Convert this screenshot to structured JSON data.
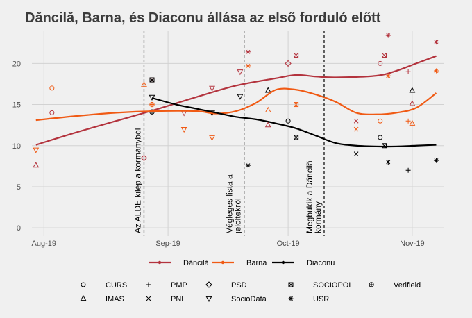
{
  "chart_data": {
    "type": "scatter",
    "title": "Dăncilă, Barna, és Diaconu állása az első forduló előtt",
    "xlabel": "",
    "ylabel": "",
    "ylim": [
      -1,
      24
    ],
    "x_ticks": [
      "Aug-19",
      "Sep-19",
      "Oct-19",
      "Nov-19"
    ],
    "y_ticks": [
      0,
      5,
      10,
      15,
      20
    ],
    "grid": true,
    "legend_position": "bottom",
    "x_start": "2019-07-29",
    "x_end": "2019-11-09",
    "annotations": [
      {
        "date": "2019-08-26",
        "lines": [
          "Az ALDE kilép a kormányból"
        ]
      },
      {
        "date": "2019-09-20",
        "lines": [
          "Végleges lista a",
          "jelöltekről"
        ]
      },
      {
        "date": "2019-10-10",
        "lines": [
          "Megbukik a Dăncilă",
          "kormány"
        ]
      }
    ],
    "trend_series": [
      {
        "name": "Dăncilă",
        "color": "#b3333d",
        "points": [
          [
            "2019-07-30",
            10.1
          ],
          [
            "2019-08-09",
            11.6
          ],
          [
            "2019-08-19",
            13.0
          ],
          [
            "2019-08-29",
            14.4
          ],
          [
            "2019-09-08",
            15.9
          ],
          [
            "2019-09-18",
            17.3
          ],
          [
            "2019-09-28",
            18.2
          ],
          [
            "2019-10-03",
            18.6
          ],
          [
            "2019-10-08",
            18.4
          ],
          [
            "2019-10-13",
            18.3
          ],
          [
            "2019-10-23",
            18.5
          ],
          [
            "2019-10-28",
            19.1
          ],
          [
            "2019-11-02",
            20.0
          ],
          [
            "2019-11-07",
            20.9
          ]
        ]
      },
      {
        "name": "Barna",
        "color": "#f05a14",
        "points": [
          [
            "2019-07-30",
            13.1
          ],
          [
            "2019-08-09",
            13.6
          ],
          [
            "2019-08-19",
            14.0
          ],
          [
            "2019-08-29",
            14.2
          ],
          [
            "2019-09-08",
            14.2
          ],
          [
            "2019-09-13",
            13.9
          ],
          [
            "2019-09-18",
            14.2
          ],
          [
            "2019-09-23",
            15.2
          ],
          [
            "2019-09-28",
            16.8
          ],
          [
            "2019-10-03",
            16.8
          ],
          [
            "2019-10-08",
            16.2
          ],
          [
            "2019-10-13",
            15.3
          ],
          [
            "2019-10-18",
            14.0
          ],
          [
            "2019-10-23",
            13.8
          ],
          [
            "2019-10-28",
            14.0
          ],
          [
            "2019-11-02",
            14.6
          ],
          [
            "2019-11-07",
            16.4
          ]
        ]
      },
      {
        "name": "Diaconu",
        "color": "#000000",
        "points": [
          [
            "2019-08-28",
            15.8
          ],
          [
            "2019-09-03",
            15.0
          ],
          [
            "2019-09-08",
            14.5
          ],
          [
            "2019-09-13",
            14.0
          ],
          [
            "2019-09-18",
            13.5
          ],
          [
            "2019-09-23",
            13.2
          ],
          [
            "2019-09-28",
            12.7
          ],
          [
            "2019-10-03",
            12.1
          ],
          [
            "2019-10-08",
            11.2
          ],
          [
            "2019-10-13",
            10.3
          ],
          [
            "2019-10-18",
            10.0
          ],
          [
            "2019-10-23",
            9.9
          ],
          [
            "2019-10-28",
            9.9
          ],
          [
            "2019-11-02",
            10.0
          ],
          [
            "2019-11-07",
            10.1
          ]
        ]
      }
    ],
    "polls": [
      {
        "pollster": "IMAS",
        "candidate": "Dăncilă",
        "date": "2019-07-30",
        "value": 7.6
      },
      {
        "pollster": "SocioData",
        "candidate": "Barna",
        "date": "2019-07-30",
        "value": 9.5
      },
      {
        "pollster": "CURS",
        "candidate": "Barna",
        "date": "2019-08-03",
        "value": 17.0
      },
      {
        "pollster": "CURS",
        "candidate": "Dăncilă",
        "date": "2019-08-03",
        "value": 14.0
      },
      {
        "pollster": "PSD",
        "candidate": "Dăncilă",
        "date": "2019-08-26",
        "value": 8.5
      },
      {
        "pollster": "IMAS",
        "candidate": "Barna",
        "date": "2019-08-26",
        "value": 17.4
      },
      {
        "pollster": "Verifield",
        "candidate": "Barna",
        "date": "2019-08-28",
        "value": 15.0
      },
      {
        "pollster": "Verifield",
        "candidate": "Diaconu",
        "date": "2019-08-28",
        "value": 14.1
      },
      {
        "pollster": "SOCIOPOL",
        "candidate": "Dăncilă",
        "date": "2019-08-28",
        "value": 18.0
      },
      {
        "pollster": "SOCIOPOL",
        "candidate": "Diaconu",
        "date": "2019-08-28",
        "value": 18.0
      },
      {
        "pollster": "SocioData",
        "candidate": "Diaconu",
        "date": "2019-08-28",
        "value": 15.9
      },
      {
        "pollster": "SocioData",
        "candidate": "Dăncilă",
        "date": "2019-09-05",
        "value": 14.0
      },
      {
        "pollster": "SocioData",
        "candidate": "Barna",
        "date": "2019-09-05",
        "value": 12.0
      },
      {
        "pollster": "SocioData",
        "candidate": "Dăncilă",
        "date": "2019-09-12",
        "value": 17.0
      },
      {
        "pollster": "SocioData",
        "candidate": "Barna",
        "date": "2019-09-12",
        "value": 11.0
      },
      {
        "pollster": "SocioData",
        "candidate": "Diaconu",
        "date": "2019-09-12",
        "value": 14.0
      },
      {
        "pollster": "SocioData",
        "candidate": "Dăncilă",
        "date": "2019-09-19",
        "value": 19.0
      },
      {
        "pollster": "SocioData",
        "candidate": "Diaconu",
        "date": "2019-09-19",
        "value": 16.0
      },
      {
        "pollster": "USR",
        "candidate": "Dăncilă",
        "date": "2019-09-21",
        "value": 21.4
      },
      {
        "pollster": "USR",
        "candidate": "Barna",
        "date": "2019-09-21",
        "value": 19.7
      },
      {
        "pollster": "USR",
        "candidate": "Diaconu",
        "date": "2019-09-21",
        "value": 7.6
      },
      {
        "pollster": "IMAS",
        "candidate": "Diaconu",
        "date": "2019-09-26",
        "value": 16.7
      },
      {
        "pollster": "IMAS",
        "candidate": "Barna",
        "date": "2019-09-26",
        "value": 14.3
      },
      {
        "pollster": "IMAS",
        "candidate": "Dăncilă",
        "date": "2019-09-26",
        "value": 12.5
      },
      {
        "pollster": "PSD",
        "candidate": "Dăncilă",
        "date": "2019-10-01",
        "value": 20.0
      },
      {
        "pollster": "CURS",
        "candidate": "Diaconu",
        "date": "2019-10-01",
        "value": 13.0
      },
      {
        "pollster": "SOCIOPOL",
        "candidate": "Dăncilă",
        "date": "2019-10-03",
        "value": 21.0
      },
      {
        "pollster": "SOCIOPOL",
        "candidate": "Barna",
        "date": "2019-10-03",
        "value": 15.0
      },
      {
        "pollster": "SOCIOPOL",
        "candidate": "Diaconu",
        "date": "2019-10-03",
        "value": 11.0
      },
      {
        "pollster": "PNL",
        "candidate": "Dăncilă",
        "date": "2019-10-18",
        "value": 13.0
      },
      {
        "pollster": "PNL",
        "candidate": "Barna",
        "date": "2019-10-18",
        "value": 12.0
      },
      {
        "pollster": "PNL",
        "candidate": "Diaconu",
        "date": "2019-10-18",
        "value": 9.0
      },
      {
        "pollster": "CURS",
        "candidate": "Dăncilă",
        "date": "2019-10-24",
        "value": 20.0
      },
      {
        "pollster": "CURS",
        "candidate": "Barna",
        "date": "2019-10-24",
        "value": 13.0
      },
      {
        "pollster": "CURS",
        "candidate": "Diaconu",
        "date": "2019-10-24",
        "value": 11.0
      },
      {
        "pollster": "SOCIOPOL",
        "candidate": "Dăncilă",
        "date": "2019-10-25",
        "value": 21.0
      },
      {
        "pollster": "SOCIOPOL",
        "candidate": "Diaconu",
        "date": "2019-10-25",
        "value": 10.0
      },
      {
        "pollster": "USR",
        "candidate": "Dăncilă",
        "date": "2019-10-26",
        "value": 23.4
      },
      {
        "pollster": "USR",
        "candidate": "Barna",
        "date": "2019-10-26",
        "value": 18.5
      },
      {
        "pollster": "USR",
        "candidate": "Diaconu",
        "date": "2019-10-26",
        "value": 8.0
      },
      {
        "pollster": "PMP",
        "candidate": "Dăncilă",
        "date": "2019-10-31",
        "value": 19.0
      },
      {
        "pollster": "PMP",
        "candidate": "Barna",
        "date": "2019-10-31",
        "value": 13.0
      },
      {
        "pollster": "PMP",
        "candidate": "Diaconu",
        "date": "2019-10-31",
        "value": 7.0
      },
      {
        "pollster": "IMAS",
        "candidate": "Diaconu",
        "date": "2019-11-01",
        "value": 16.7
      },
      {
        "pollster": "IMAS",
        "candidate": "Dăncilă",
        "date": "2019-11-01",
        "value": 15.1
      },
      {
        "pollster": "IMAS",
        "candidate": "Barna",
        "date": "2019-11-01",
        "value": 12.7
      },
      {
        "pollster": "USR",
        "candidate": "Dăncilă",
        "date": "2019-11-07",
        "value": 22.6
      },
      {
        "pollster": "USR",
        "candidate": "Barna",
        "date": "2019-11-07",
        "value": 19.1
      },
      {
        "pollster": "USR",
        "candidate": "Diaconu",
        "date": "2019-11-07",
        "value": 8.2
      }
    ]
  },
  "legend": {
    "candidates": [
      {
        "label": "Dăncilă",
        "color": "#b3333d"
      },
      {
        "label": "Barna",
        "color": "#f05a14"
      },
      {
        "label": "Diaconu",
        "color": "#000000"
      }
    ],
    "pollsters": [
      {
        "label": "CURS",
        "shape": "circle"
      },
      {
        "label": "PMP",
        "shape": "plus"
      },
      {
        "label": "PSD",
        "shape": "diamond"
      },
      {
        "label": "SOCIOPOL",
        "shape": "boxed-x"
      },
      {
        "label": "Verifield",
        "shape": "circle-plus"
      },
      {
        "label": "IMAS",
        "shape": "triangle-up"
      },
      {
        "label": "PNL",
        "shape": "x"
      },
      {
        "label": "SocioData",
        "shape": "triangle-down"
      },
      {
        "label": "USR",
        "shape": "asterisk"
      }
    ]
  }
}
